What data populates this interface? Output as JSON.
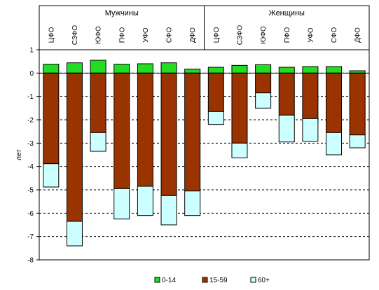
{
  "chart_data": {
    "type": "bar",
    "stacked": true,
    "groups": [
      {
        "label": "Мужчины",
        "categories": [
          "ЦФО",
          "СЗФО",
          "ЮФО",
          "ПФО",
          "УФО",
          "СФО",
          "ДФО"
        ]
      },
      {
        "label": "Женщины",
        "categories": [
          "ЦФО",
          "СЗФО",
          "ЮФО",
          "ПФО",
          "УФО",
          "СФО",
          "ДФО"
        ]
      }
    ],
    "categories": [
      "ЦФО",
      "СЗФО",
      "ЮФО",
      "ПФО",
      "УФО",
      "СФО",
      "ДФО",
      "ЦФО",
      "СЗФО",
      "ЮФО",
      "ПФО",
      "УФО",
      "СФО",
      "ДФО"
    ],
    "series": [
      {
        "name": "0-14",
        "color": "#22dd22",
        "values": [
          0.38,
          0.44,
          0.55,
          0.38,
          0.4,
          0.44,
          0.17,
          0.25,
          0.33,
          0.36,
          0.25,
          0.28,
          0.28,
          0.1
        ]
      },
      {
        "name": "15-59",
        "color": "#993300",
        "values": [
          -3.88,
          -6.35,
          -2.55,
          -4.95,
          -4.85,
          -5.25,
          -5.05,
          -1.65,
          -3.0,
          -0.85,
          -1.8,
          -1.95,
          -2.55,
          -2.65
        ]
      },
      {
        "name": "60+",
        "color": "#ccffff",
        "values": [
          -1.0,
          -1.05,
          -0.8,
          -1.3,
          -1.25,
          -1.25,
          -1.05,
          -0.55,
          -0.63,
          -0.65,
          -1.15,
          -0.97,
          -0.95,
          -0.55
        ]
      }
    ],
    "ylabel": "лет",
    "ylim": [
      -8,
      1
    ],
    "yticks": [
      "1",
      "0",
      "-1",
      "-2",
      "-3",
      "-4",
      "-5",
      "-6",
      "-7",
      "-8"
    ],
    "grid": "horizontal dashed",
    "legend_position": "bottom"
  }
}
